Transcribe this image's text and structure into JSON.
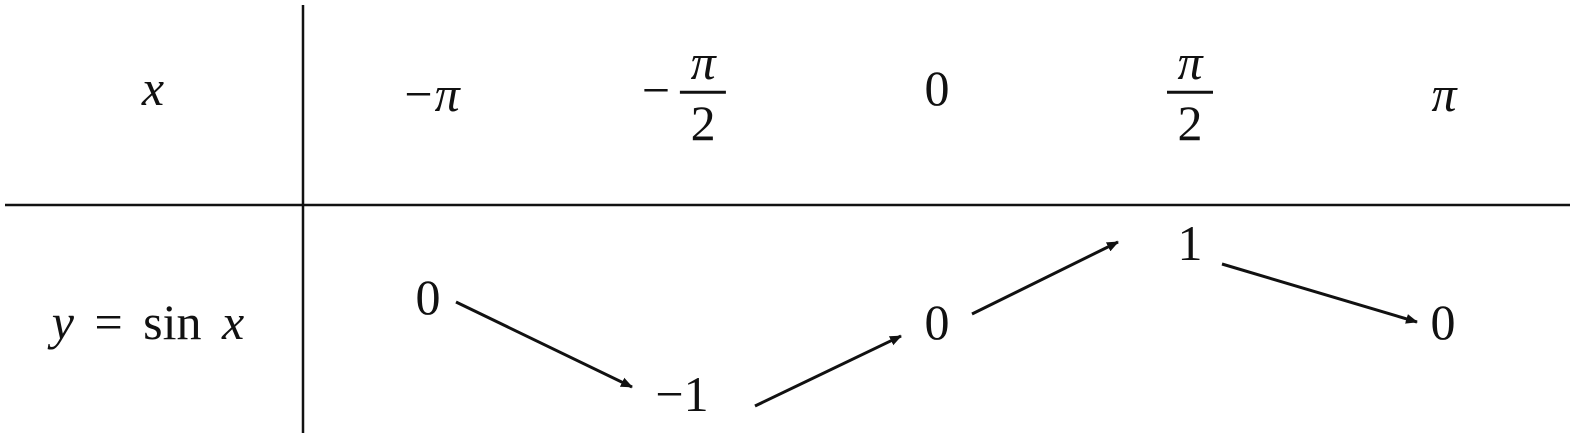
{
  "table": {
    "header_row_label": "x",
    "value_row_label": {
      "y": "y",
      "eq": "=",
      "fn": "sin",
      "x": "x"
    },
    "x_values": [
      {
        "sign": "−",
        "num": "π",
        "den": ""
      },
      {
        "sign": "−",
        "num": "π",
        "den": "2"
      },
      {
        "sign": "",
        "num": "0",
        "den": ""
      },
      {
        "sign": "",
        "num": "π",
        "den": "2"
      },
      {
        "sign": "",
        "num": "π",
        "den": ""
      }
    ],
    "y_values": [
      "0",
      "−1",
      "0",
      "1",
      "0"
    ]
  },
  "arrows": [
    {
      "from": 0,
      "to": 1,
      "direction": "down"
    },
    {
      "from": 1,
      "to": 2,
      "direction": "up"
    },
    {
      "from": 2,
      "to": 3,
      "direction": "up"
    },
    {
      "from": 3,
      "to": 4,
      "direction": "down"
    }
  ],
  "colors": {
    "ink": "#111111",
    "background": "#ffffff"
  }
}
